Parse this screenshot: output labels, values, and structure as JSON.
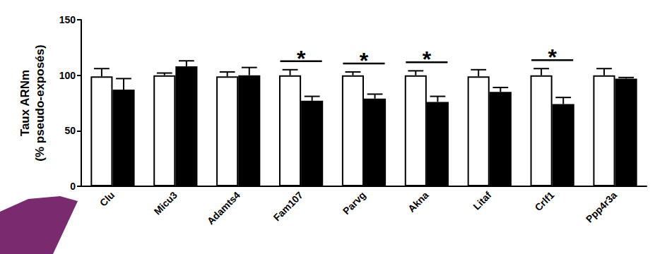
{
  "chart_data": {
    "type": "bar",
    "y_label": "Taux ARNm\n(% pseudo-exposés)",
    "categories": [
      "Clu",
      "Micu3",
      "Adamts4",
      "Fam107",
      "Parvg",
      "Akna",
      "Litaf",
      "Crlf1",
      "Ppp4r3a"
    ],
    "series": [
      {
        "color": "#ffffff",
        "values": [
          99,
          100,
          99,
          100,
          100,
          100,
          99,
          100,
          100
        ],
        "errors": [
          7,
          2,
          4,
          5,
          3,
          4,
          6,
          6,
          6
        ]
      },
      {
        "color": "#000000",
        "values": [
          87,
          108,
          100,
          77,
          79,
          76,
          85,
          74,
          97
        ],
        "errors": [
          10,
          5,
          7,
          4,
          4,
          5,
          4,
          6,
          1
        ]
      }
    ],
    "ylim": [
      0,
      150
    ],
    "yticks": [
      0,
      50,
      100,
      150
    ],
    "grid": false,
    "annotations": [
      {
        "category": "Fam107",
        "text": "*"
      },
      {
        "category": "Parvg",
        "text": "*"
      },
      {
        "category": "Akna",
        "text": "*"
      },
      {
        "category": "Crlf1",
        "text": "*"
      }
    ]
  }
}
